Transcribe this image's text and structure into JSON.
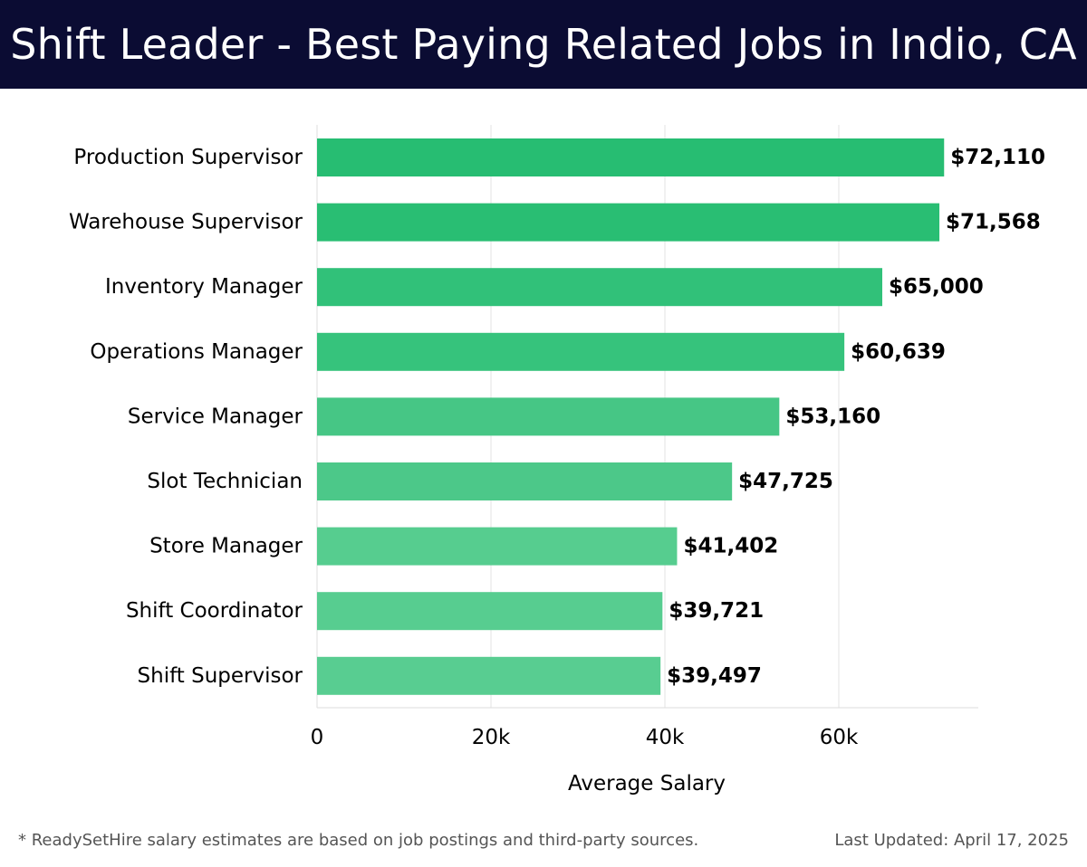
{
  "header": {
    "title": "Shift Leader - Best Paying Related Jobs in Indio, CA"
  },
  "chart_data": {
    "type": "bar",
    "orientation": "horizontal",
    "title": "Shift Leader - Best Paying Related Jobs in Indio, CA",
    "xlabel": "Average Salary",
    "ylabel": "",
    "xlim": [
      0,
      76000
    ],
    "x_ticks": [
      0,
      20000,
      40000,
      60000
    ],
    "x_tick_labels": [
      "0",
      "20k",
      "40k",
      "60k"
    ],
    "grid": "vertical",
    "categories": [
      "Production Supervisor",
      "Warehouse Supervisor",
      "Inventory Manager",
      "Operations Manager",
      "Service Manager",
      "Slot Technician",
      "Store Manager",
      "Shift Coordinator",
      "Shift Supervisor"
    ],
    "values": [
      72110,
      71568,
      65000,
      60639,
      53160,
      47725,
      41402,
      39721,
      39497
    ],
    "value_labels": [
      "$72,110",
      "$71,568",
      "$65,000",
      "$60,639",
      "$53,160",
      "$47,725",
      "$41,402",
      "$39,721",
      "$39,497"
    ],
    "colors": [
      "#27bd72",
      "#29be73",
      "#31c179",
      "#36c37c",
      "#46c685",
      "#4cc889",
      "#56cd8f",
      "#57cd90",
      "#58cd91"
    ]
  },
  "footer": {
    "note": "* ReadySetHire salary estimates are based on job postings and third-party sources.",
    "updated": "Last Updated: April 17, 2025"
  },
  "colors": {
    "header_bg": "#0b0c33",
    "grid": "#e3e3e3",
    "axis": "#dddddd"
  }
}
